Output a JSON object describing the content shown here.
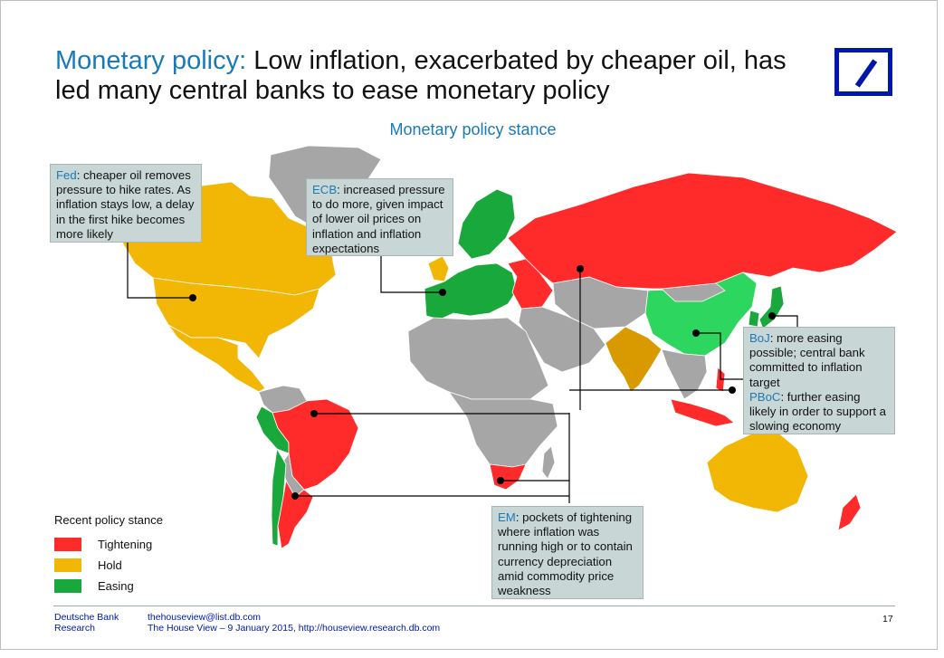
{
  "header": {
    "title_prefix": "Monetary policy:",
    "title_rest": " Low inflation, exacerbated by cheaper oil, has led many central banks to ease monetary policy",
    "logo": "Deutsche Bank logo"
  },
  "map": {
    "subtitle": "Monetary policy stance",
    "colors": {
      "tightening": "#ff2a2a",
      "hold": "#f2b705",
      "hold_dark": "#d99a00",
      "easing": "#19a83c",
      "easing_light": "#2dd65e",
      "no_data": "#a6a6a6",
      "ocean": "#ffffff"
    }
  },
  "callouts": {
    "fed": {
      "key": "Fed",
      "text": ": cheaper oil removes pressure to hike rates. As inflation stays low, a delay in the first hike becomes more likely"
    },
    "ecb": {
      "key": "ECB",
      "text": ": increased pressure to do more, given impact of lower oil prices on inflation and inflation expectations"
    },
    "boj": {
      "key": "BoJ",
      "text": ": more easing possible; central bank committed to inflation target"
    },
    "pboc": {
      "key": "PBoC",
      "text": ": further easing likely in order to support a slowing economy"
    },
    "em": {
      "key": "EM",
      "text": ": pockets of tightening where inflation was running high or to contain currency depreciation amid commodity price weakness"
    }
  },
  "legend": {
    "title": "Recent policy stance",
    "items": [
      {
        "label": "Tightening",
        "color": "#ff2a2a"
      },
      {
        "label": "Hold",
        "color": "#f2b705"
      },
      {
        "label": "Easing",
        "color": "#19a83c"
      }
    ]
  },
  "footer": {
    "org_line1": "Deutsche Bank",
    "org_line2": "Research",
    "email": "thehouseview@list.db.com",
    "source": "The House View – 9 January 2015, http://houseview.research.db.com",
    "page": "17"
  }
}
